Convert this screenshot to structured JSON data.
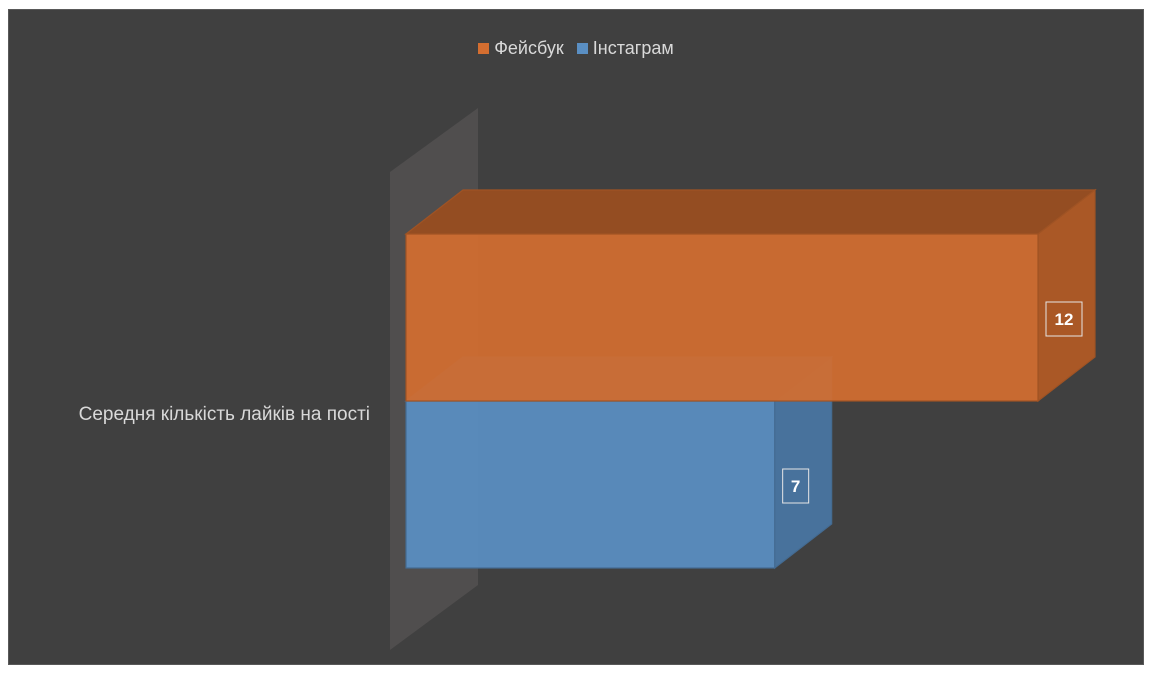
{
  "chart_data": {
    "type": "bar",
    "orientation": "horizontal",
    "three_d": true,
    "categories": [
      "Середня кількість лайків на пості"
    ],
    "series": [
      {
        "name": "Фейсбук",
        "values": [
          12
        ],
        "color": "#d46e30"
      },
      {
        "name": "Інстаграм",
        "values": [
          7
        ],
        "color": "#5a8fc3"
      }
    ],
    "xlim": [
      0,
      12
    ],
    "legend_position": "top",
    "grid": false,
    "data_labels": true
  },
  "colors": {
    "background": "#404040",
    "text": "#d9d9d9"
  }
}
